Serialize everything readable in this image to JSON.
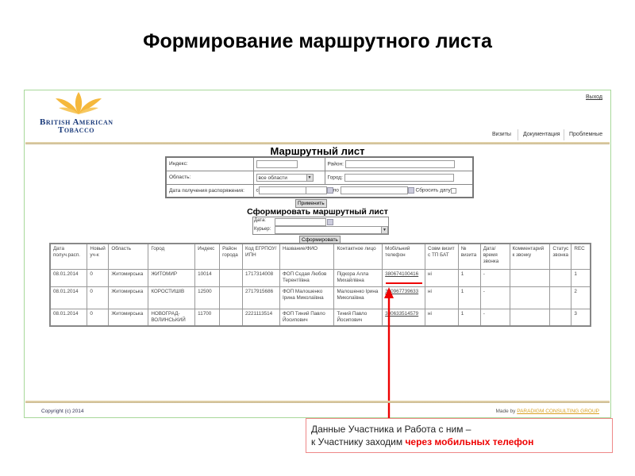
{
  "slide_title": "Формирование маршрутного листа",
  "app": {
    "logo": {
      "line1": "British American",
      "line2": "Tobacco"
    },
    "logout": "Выход",
    "nav": [
      {
        "label": "Визиты"
      },
      {
        "label": "Документация"
      },
      {
        "label": "Проблемные"
      }
    ]
  },
  "filter": {
    "title": "Маршрутный лист",
    "index_label": "Индекс:",
    "district_label": "Район:",
    "region_label": "Область:",
    "region_value": "все области",
    "city_label": "Город:",
    "date_label": "Дата получения распоряжения:",
    "from_label": "с",
    "to_label": "по",
    "reset_label": "Сбросить дату",
    "apply_button": "Применить"
  },
  "form": {
    "title": "Сформировать маршрутный лист",
    "date_label": "Дата:",
    "courier_label": "Курьер:",
    "submit_button": "Сформировать"
  },
  "table": {
    "headers": [
      "Дата получ.расп.",
      "Новый уч-к",
      "Область",
      "Город",
      "Индекс",
      "Район города",
      "Код ЕГРПОУ/ ИПН",
      "Название/ФИО",
      "Контактное лицо",
      "Мобільний телефон",
      "Совм визит с ТП БАТ",
      "№ визита",
      "Дата/ время звонка",
      "Комментарий к звонку",
      "Статус звонка",
      "REC"
    ],
    "rows": [
      [
        "08.01.2014",
        "0",
        "Житомирська",
        "ЖИТОМИР",
        "10014",
        "",
        "1717314008",
        "ФОП Сєдая Любов Терентіївна",
        "Підкора Алла Михайлівна",
        "380674100416",
        "ні",
        "1",
        "-",
        "",
        "",
        "1"
      ],
      [
        "08.01.2014",
        "0",
        "Житомирська",
        "КОРОСТИШІВ",
        "12500",
        "",
        "2717915686",
        "ФОП Малошенко Ірина Миколаївна",
        "Малошенко Ірина Миколаївна",
        "380967739633",
        "ні",
        "1",
        "-",
        "",
        "",
        "2"
      ],
      [
        "08.01.2014",
        "0",
        "Житомирська",
        "НОВОГРАД-ВОЛИНСЬКИЙ",
        "11700",
        "",
        "2221113514",
        "ФОП Тиний Павло Йосипович",
        "Тиний Павло Йосипович",
        "380633514579",
        "ні",
        "1",
        "-",
        "",
        "",
        "3"
      ]
    ]
  },
  "footer": {
    "copyright": "Copyright (c) 2014",
    "made_by": "Made by",
    "company": "PARADIGM CONSULTING GROUP"
  },
  "callout": {
    "line1": "Данные Участника и Работа с ним –",
    "line2_prefix": "к Участнику заходим",
    "line2_highlight": "через мобильных телефон"
  },
  "colors": {
    "annotation": "#e00000",
    "logo_leaf": "#f5b83c",
    "logo_text": "#1a3a7a",
    "frame": "#a8d89a"
  }
}
